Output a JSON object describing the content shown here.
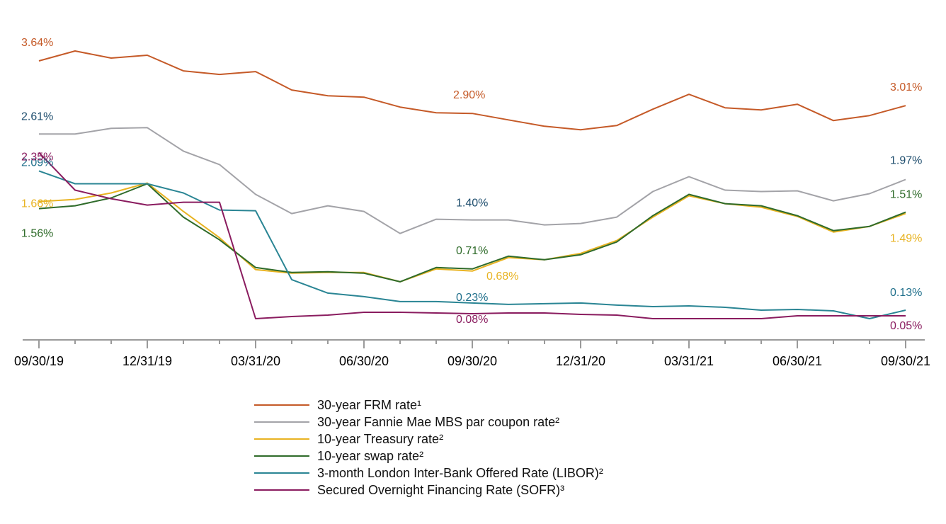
{
  "chart_data": {
    "type": "line",
    "title": "",
    "xlabel": "",
    "ylabel": "",
    "grid": false,
    "legend_position": "bottom",
    "x": [
      "09/30/19",
      "10/31/19",
      "11/30/19",
      "12/31/19",
      "01/31/20",
      "02/29/20",
      "03/31/20",
      "04/30/20",
      "05/31/20",
      "06/30/20",
      "07/31/20",
      "08/31/20",
      "09/30/20",
      "10/31/20",
      "11/30/20",
      "12/31/20",
      "01/31/21",
      "02/28/21",
      "03/31/21",
      "04/30/21",
      "05/31/21",
      "06/30/21",
      "07/31/21",
      "08/31/21",
      "09/30/21"
    ],
    "x_tick_labels": [
      "09/30/19",
      "12/31/19",
      "03/31/20",
      "06/30/20",
      "09/30/20",
      "12/31/20",
      "03/31/21",
      "06/30/21",
      "09/30/21"
    ],
    "series": [
      {
        "name": "30-year FRM rate¹",
        "color": "#c55a28",
        "values": [
          3.64,
          3.78,
          3.68,
          3.72,
          3.5,
          3.45,
          3.49,
          3.23,
          3.15,
          3.13,
          2.99,
          2.91,
          2.9,
          2.81,
          2.72,
          2.67,
          2.73,
          2.96,
          3.17,
          2.98,
          2.95,
          3.03,
          2.8,
          2.87,
          3.01
        ]
      },
      {
        "name": "30-year Fannie Mae MBS par coupon rate²",
        "color": "#a3a3a8",
        "values": [
          2.61,
          2.61,
          2.69,
          2.7,
          2.37,
          2.18,
          1.76,
          1.49,
          1.6,
          1.52,
          1.21,
          1.41,
          1.4,
          1.4,
          1.33,
          1.35,
          1.44,
          1.8,
          2.01,
          1.82,
          1.8,
          1.81,
          1.67,
          1.77,
          1.97
        ]
      },
      {
        "name": "10-year Treasury rate²",
        "color": "#e8b322",
        "values": [
          1.66,
          1.69,
          1.78,
          1.92,
          1.52,
          1.15,
          0.7,
          0.65,
          0.66,
          0.66,
          0.53,
          0.71,
          0.68,
          0.87,
          0.84,
          0.93,
          1.11,
          1.44,
          1.74,
          1.63,
          1.58,
          1.45,
          1.23,
          1.31,
          1.49
        ]
      },
      {
        "name": "10-year swap rate²",
        "color": "#2f6b2a",
        "values": [
          1.56,
          1.6,
          1.71,
          1.91,
          1.44,
          1.12,
          0.73,
          0.66,
          0.67,
          0.65,
          0.53,
          0.73,
          0.71,
          0.89,
          0.84,
          0.91,
          1.09,
          1.46,
          1.76,
          1.63,
          1.6,
          1.46,
          1.25,
          1.31,
          1.51
        ]
      },
      {
        "name": "3-month London Inter-Bank Offered Rate (LIBOR)²",
        "color": "#2a8594",
        "values": [
          2.09,
          1.91,
          1.91,
          1.91,
          1.78,
          1.54,
          1.53,
          0.56,
          0.37,
          0.32,
          0.25,
          0.25,
          0.23,
          0.21,
          0.22,
          0.23,
          0.2,
          0.18,
          0.19,
          0.17,
          0.13,
          0.14,
          0.12,
          0.01,
          0.13
        ]
      },
      {
        "name": "Secured Overnight Financing Rate (SOFR)³",
        "color": "#8a1c5f",
        "values": [
          2.35,
          1.82,
          1.7,
          1.61,
          1.65,
          1.65,
          0.01,
          0.04,
          0.06,
          0.1,
          0.1,
          0.09,
          0.08,
          0.09,
          0.09,
          0.07,
          0.06,
          0.01,
          0.01,
          0.01,
          0.01,
          0.05,
          0.05,
          0.05,
          0.05
        ]
      }
    ],
    "data_labels": [
      {
        "series": 0,
        "index": 0,
        "text": "3.64%"
      },
      {
        "series": 0,
        "index": 12,
        "text": "2.90%"
      },
      {
        "series": 0,
        "index": 24,
        "text": "3.01%"
      },
      {
        "series": 1,
        "index": 0,
        "text": "2.61%"
      },
      {
        "series": 1,
        "index": 12,
        "text": "1.40%"
      },
      {
        "series": 1,
        "index": 24,
        "text": "1.97%"
      },
      {
        "series": 2,
        "index": 0,
        "text": "1.66%"
      },
      {
        "series": 2,
        "index": 12,
        "text": "0.68%"
      },
      {
        "series": 2,
        "index": 24,
        "text": "1.49%"
      },
      {
        "series": 3,
        "index": 0,
        "text": "1.56%"
      },
      {
        "series": 3,
        "index": 12,
        "text": "0.71%"
      },
      {
        "series": 3,
        "index": 24,
        "text": "1.51%"
      },
      {
        "series": 4,
        "index": 0,
        "text": "2.09%"
      },
      {
        "series": 4,
        "index": 12,
        "text": "0.23%"
      },
      {
        "series": 4,
        "index": 24,
        "text": "0.13%"
      },
      {
        "series": 5,
        "index": 0,
        "text": "2.35%"
      },
      {
        "series": 5,
        "index": 12,
        "text": "0.08%"
      },
      {
        "series": 5,
        "index": 24,
        "text": "0.05%"
      }
    ],
    "label_colors": [
      "#c55a28",
      "#1f4e6e",
      "#e8b322",
      "#2f6b2a",
      "#1f6f8b",
      "#8a1c5f"
    ]
  }
}
